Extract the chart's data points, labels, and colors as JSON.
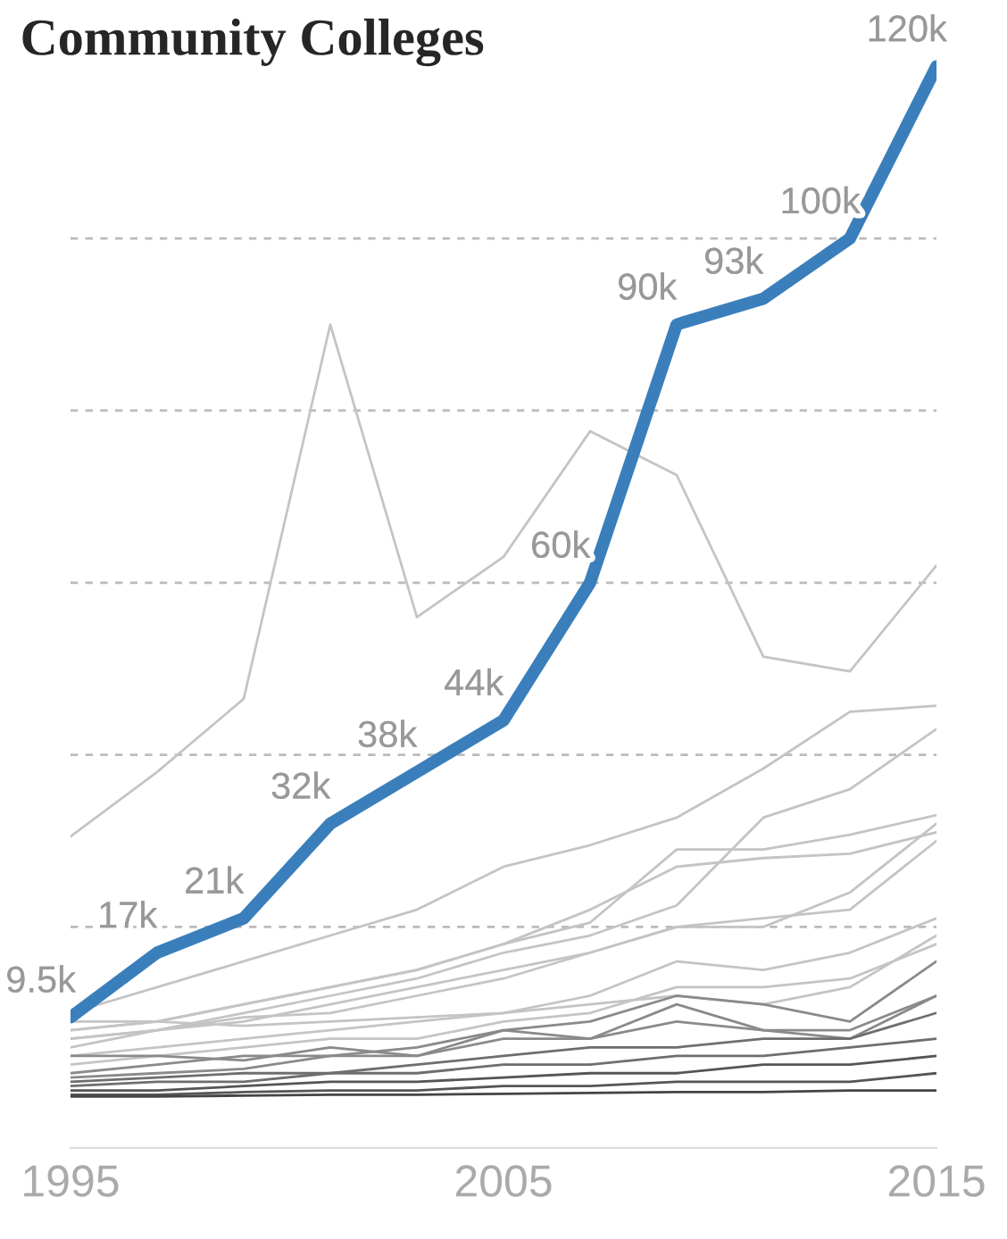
{
  "chart_data": {
    "type": "line",
    "title": "Community Colleges",
    "x": [
      1995,
      1997,
      1999,
      2001,
      2003,
      2005,
      2007,
      2009,
      2011,
      2013,
      2015
    ],
    "xlim": [
      1995,
      2015
    ],
    "xticks": [
      1995,
      2005,
      2015
    ],
    "yticks": [
      {
        "value": 20,
        "label": null
      },
      {
        "value": 40,
        "label": null
      },
      {
        "value": 60,
        "label": null
      },
      {
        "value": 80,
        "label": null
      },
      {
        "value": 100,
        "label": null
      }
    ],
    "grid": "y",
    "tick_labels": "x",
    "series": [
      {
        "color": "#c4c4c4",
        "values": [
          30.5,
          38,
          46.5,
          90,
          56,
          63,
          77.6,
          72.5,
          51.4,
          49.7,
          62
        ]
      },
      {
        "color": "#c4c4c4",
        "values": [
          10,
          13,
          16,
          19,
          22,
          27,
          29.5,
          32.7,
          38.4,
          45,
          45.7
        ]
      },
      {
        "color": "#c4c4c4",
        "values": [
          7,
          8,
          10,
          12,
          14,
          17,
          19,
          22.5,
          32.7,
          36,
          43
        ]
      },
      {
        "color": "#c4c4c4",
        "values": [
          8,
          9,
          11,
          13,
          15,
          18,
          20.5,
          29,
          29,
          30.7,
          33
        ]
      },
      {
        "color": "#c4c4c4",
        "values": [
          8,
          9,
          11,
          13,
          15,
          18,
          22,
          27,
          28,
          28.5,
          31
        ]
      },
      {
        "color": "#c4c4c4",
        "values": [
          7,
          8,
          9.5,
          10,
          12,
          14,
          17,
          20,
          21,
          22,
          30
        ]
      },
      {
        "color": "#c4c4c4",
        "values": [
          6,
          8,
          9,
          11,
          13,
          15,
          17,
          20,
          20,
          24,
          32
        ]
      },
      {
        "color": "#c4c4c4",
        "values": [
          9,
          9,
          8.5,
          9,
          9.5,
          10,
          11,
          12,
          11,
          13,
          19
        ]
      },
      {
        "color": "#c4c4c4",
        "values": [
          5,
          6,
          7,
          8,
          9,
          10,
          12,
          16,
          15,
          17,
          21
        ]
      },
      {
        "color": "#c4c4c4",
        "values": [
          4,
          5,
          6,
          7,
          7,
          9,
          10,
          13,
          13,
          14,
          18
        ]
      },
      {
        "color": "#8a8a8a",
        "values": [
          5,
          5,
          4.5,
          6,
          5,
          8,
          7,
          11,
          8,
          7,
          12
        ]
      },
      {
        "color": "#8a8a8a",
        "values": [
          3,
          4,
          5,
          5,
          6,
          8,
          9,
          12,
          11,
          9,
          16
        ]
      },
      {
        "color": "#8a8a8a",
        "values": [
          2.5,
          3,
          3.5,
          5,
          5,
          7,
          7,
          9,
          8,
          8,
          12
        ]
      },
      {
        "color": "#6e6e6e",
        "values": [
          2,
          2.5,
          3,
          3,
          4,
          5,
          6,
          6,
          7,
          7,
          10
        ]
      },
      {
        "color": "#6e6e6e",
        "values": [
          1.5,
          2,
          2,
          3,
          3,
          4,
          4,
          5,
          5,
          6,
          7
        ]
      },
      {
        "color": "#555555",
        "values": [
          1,
          1,
          1.5,
          2,
          2,
          2.5,
          3,
          3,
          4,
          4,
          5
        ]
      },
      {
        "color": "#555555",
        "values": [
          0.5,
          0.5,
          0.8,
          1,
          1,
          1.5,
          1.5,
          2,
          2,
          2,
          3
        ]
      },
      {
        "color": "#444444",
        "values": [
          0.3,
          0.3,
          0.4,
          0.5,
          0.5,
          0.6,
          0.7,
          0.8,
          0.8,
          1,
          1
        ]
      },
      {
        "color": "#3a7fbb",
        "values": [
          9.5,
          17,
          21,
          32,
          38,
          44,
          60,
          90,
          93,
          100,
          120
        ],
        "value_labels": [
          "9.5k",
          "17k",
          "21k",
          "32k",
          "38k",
          "44k",
          "60k",
          "90k",
          "93k",
          "100k",
          "120k"
        ]
      }
    ]
  }
}
